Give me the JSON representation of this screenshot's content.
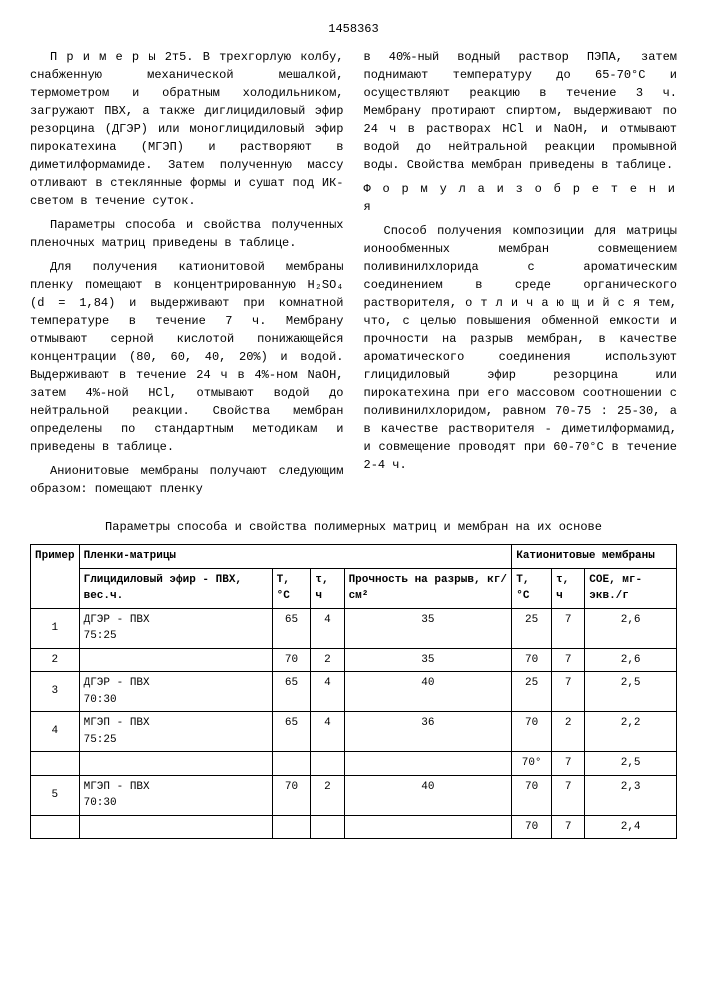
{
  "docNumber": "1458363",
  "colLeft": {
    "p1": "П р и м е р ы  2т5. В трехгорлую колбу, снабженную механической мешалкой, термометром и обратным холодильником, загружают ПВХ, а также диглицидиловый эфир резорцина (ДГЭР) или моноглицидиловый эфир пирокатехина (МГЭП) и растворяют в диметилформамиде. Затем полученную массу отливают в стеклянные формы и сушат под ИК-светом в течение суток.",
    "p2": "Параметры способа и свойства полученных пленочных матриц приведены в таблице.",
    "p3": "Для получения катионитовой мембраны пленку помещают в концентрированную H₂SO₄ (d = 1,84) и выдерживают при комнатной температуре в течение 7 ч. Мембрану отмывают серной кислотой понижающейся концентрации (80, 60, 40, 20%) и водой. Выдерживают в течение 24 ч в 4%-ном NaOH, затем 4%-ной HCl, отмывают водой до нейтральной реакции. Свойства мембран определены по стандартным методикам и приведены в таблице.",
    "p4": "Анионитовые мембраны получают следующим образом: помещают пленку"
  },
  "colRight": {
    "p1": "в 40%-ный водный раствор ПЭПА, затем поднимают температуру до 65-70°С и осуществляют реакцию в течение 3 ч. Мембрану протирают спиртом, выдерживают по 24 ч в растворах HCl и NaOH, и отмывают водой до нейтральной реакции промывной воды. Свойства мембран приведены в таблице.",
    "formulaTitle": "Ф о р м у л а  и з о б р е т е н и я",
    "p2": "Способ получения композиции для матрицы ионообменных мембран совмещением поливинилхлорида с ароматическим соединением в среде органического растворителя, о т л и ч а ю щ и й с я  тем, что, с целью повышения обменной емкости и прочности на разрыв мембран, в качестве ароматического соединения используют глицидиловый эфир резорцина или пирокатехина при его массовом соотношении с поливинилхлоридом, равном 70-75 : 25-30, а в качестве растворителя - диметилформамид, и совмещение проводят при 60-70°С в течение 2-4 ч."
  },
  "tableTitle": "Параметры способа и свойства полимерных матриц и мембран на их основе",
  "headers": {
    "h1": "Пример",
    "h2": "Пленки-матрицы",
    "h3": "Катионитовые мембраны",
    "s1": "Глицидиловый эфир - ПВХ, вес.ч.",
    "s2": "Т, °С",
    "s3": "τ, ч",
    "s4": "Прочность на разрыв, кг/см²",
    "s5": "Т, °С",
    "s6": "τ, ч",
    "s7": "СОЕ, мг-экв./г"
  },
  "rows": [
    {
      "n": "1",
      "c1": "ДГЭР - ПВХ",
      "c1b": "75:25",
      "t1": "65",
      "tau1": "4",
      "p": "35",
      "t2": "25",
      "tau2": "7",
      "coe": "2,6"
    },
    {
      "n": "2",
      "c1": "",
      "c1b": "",
      "t1": "70",
      "tau1": "2",
      "p": "35",
      "t2": "70",
      "tau2": "7",
      "coe": "2,6"
    },
    {
      "n": "3",
      "c1": "ДГЭР - ПВХ",
      "c1b": "70:30",
      "t1": "65",
      "tau1": "4",
      "p": "40",
      "t2": "25",
      "tau2": "7",
      "coe": "2,5"
    },
    {
      "n": "4",
      "c1": "МГЭП - ПВХ",
      "c1b": "75:25",
      "t1": "65",
      "tau1": "4",
      "p": "36",
      "t2": "70",
      "tau2": "2",
      "coe": "2,2"
    },
    {
      "n": "",
      "c1": "",
      "c1b": "",
      "t1": "",
      "tau1": "",
      "p": "",
      "t2": "70°",
      "tau2": "7",
      "coe": "2,5"
    },
    {
      "n": "5",
      "c1": "МГЭП - ПВХ",
      "c1b": "70:30",
      "t1": "70",
      "tau1": "2",
      "p": "40",
      "t2": "70",
      "tau2": "7",
      "coe": "2,3"
    },
    {
      "n": "",
      "c1": "",
      "c1b": "",
      "t1": "",
      "tau1": "",
      "p": "",
      "t2": "70",
      "tau2": "7",
      "coe": "2,4"
    }
  ]
}
